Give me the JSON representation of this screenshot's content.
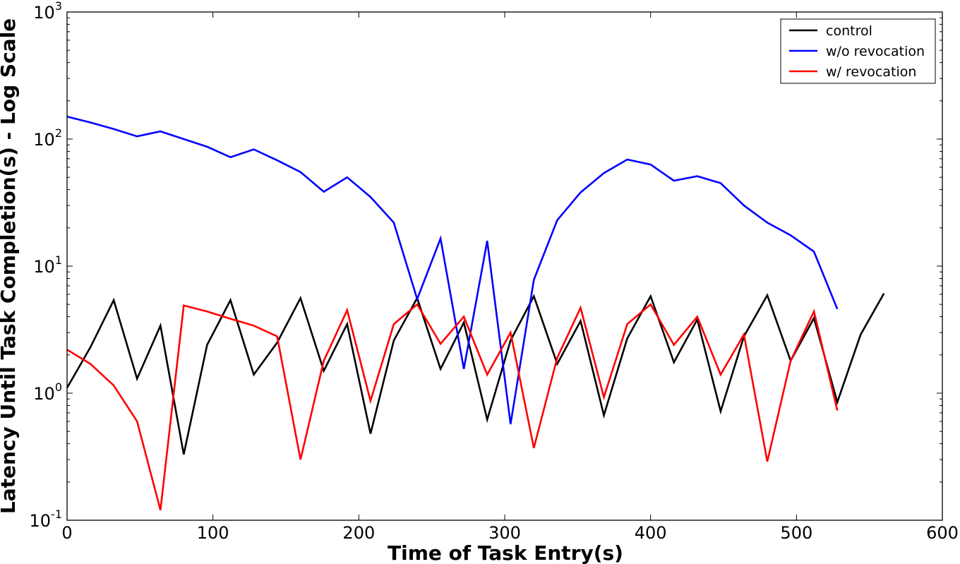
{
  "chart_data": {
    "type": "line",
    "title": "",
    "xlabel": "Time of Task Entry(s)",
    "ylabel": "Latency Until Task Completion(s) - Log Scale",
    "xlim": [
      0,
      600
    ],
    "ylim": [
      0.1,
      1000
    ],
    "yscale": "log",
    "xticks": [
      0,
      100,
      200,
      300,
      400,
      500,
      600
    ],
    "xtick_labels": [
      "0",
      "100",
      "200",
      "300",
      "400",
      "500",
      "600"
    ],
    "yticks": [
      {
        "value": 0.1,
        "base": "10",
        "exp": "-1"
      },
      {
        "value": 1,
        "base": "10",
        "exp": "0"
      },
      {
        "value": 10,
        "base": "10",
        "exp": "1"
      },
      {
        "value": 100,
        "base": "10",
        "exp": "2"
      },
      {
        "value": 1000,
        "base": "10",
        "exp": "3"
      }
    ],
    "grid": false,
    "legend_position": "top-right",
    "series": [
      {
        "name": "control",
        "color": "#000000",
        "x": [
          0,
          16,
          32,
          48,
          64,
          80,
          96,
          112,
          128,
          144,
          160,
          176,
          192,
          208,
          224,
          240,
          256,
          272,
          288,
          304,
          320,
          336,
          352,
          368,
          384,
          400,
          416,
          432,
          448,
          464,
          480,
          496,
          512,
          528,
          544,
          560
        ],
        "y": [
          1.1,
          2.3,
          5.4,
          1.3,
          3.4,
          0.33,
          2.4,
          5.4,
          1.4,
          2.5,
          5.6,
          1.5,
          3.5,
          0.48,
          2.6,
          5.6,
          1.55,
          3.6,
          0.62,
          2.6,
          5.8,
          1.7,
          3.7,
          0.67,
          2.7,
          5.8,
          1.75,
          3.8,
          0.72,
          2.8,
          5.9,
          1.8,
          3.9,
          0.85,
          2.9,
          6.1
        ]
      },
      {
        "name": "w/o revocation",
        "color": "#0000ff",
        "x": [
          0,
          16,
          32,
          48,
          64,
          80,
          96,
          112,
          128,
          144,
          160,
          176,
          192,
          208,
          224,
          240,
          256,
          272,
          288,
          304,
          320,
          336,
          352,
          368,
          384,
          400,
          416,
          432,
          448,
          464,
          480,
          496,
          512,
          528
        ],
        "y": [
          150,
          135,
          120,
          105,
          115,
          100,
          87,
          72,
          83,
          68,
          55,
          38.5,
          50,
          35,
          22,
          5.5,
          16.5,
          1.55,
          15.8,
          0.57,
          7.8,
          23,
          38,
          54,
          69,
          63,
          47,
          51,
          45,
          30,
          22,
          17.5,
          13,
          4.6
        ]
      },
      {
        "name": "w/ revocation",
        "color": "#ff0000",
        "x": [
          0,
          16,
          32,
          48,
          64,
          80,
          96,
          112,
          128,
          144,
          160,
          176,
          192,
          208,
          224,
          240,
          256,
          272,
          288,
          304,
          320,
          336,
          352,
          368,
          384,
          400,
          416,
          432,
          448,
          464,
          480,
          496,
          512,
          528
        ],
        "y": [
          2.2,
          1.7,
          1.15,
          0.6,
          0.12,
          4.9,
          4.4,
          3.85,
          3.4,
          2.8,
          0.3,
          1.8,
          4.5,
          0.87,
          3.5,
          5.0,
          2.45,
          4.0,
          1.4,
          3.0,
          0.37,
          1.9,
          4.7,
          0.93,
          3.5,
          5.0,
          2.4,
          4.0,
          1.4,
          2.9,
          0.29,
          1.8,
          4.4,
          0.73
        ]
      }
    ]
  }
}
